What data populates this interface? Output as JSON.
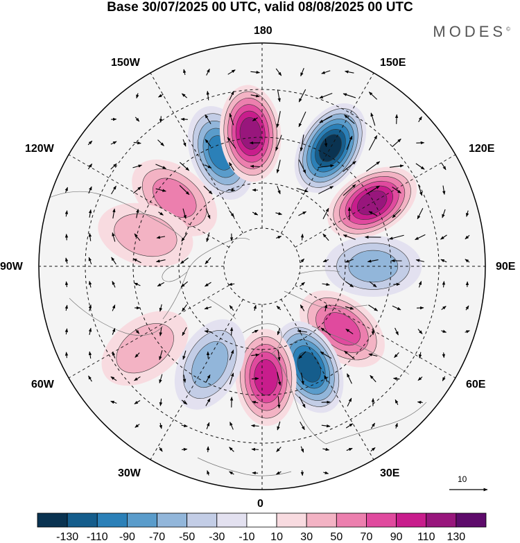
{
  "title": "Base 30/07/2025 00 UTC, valid 08/08/2025 00 UTC",
  "brand": "MODES",
  "brand_mark": "©",
  "longitude_labels": {
    "lon_180": "180",
    "lon_150e": "150E",
    "lon_120e": "120E",
    "lon_90e": "90E",
    "lon_60e": "60E",
    "lon_30e": "30E",
    "lon_0": "0",
    "lon_30w": "30W",
    "lon_60w": "60W",
    "lon_90w": "90W",
    "lon_120w": "120W",
    "lon_150w": "150W"
  },
  "reference_vector_label": "10",
  "colorbar": {
    "tick_labels": [
      "-130",
      "-110",
      "-90",
      "-70",
      "-50",
      "-30",
      "-10",
      "10",
      "30",
      "50",
      "70",
      "90",
      "110",
      "130"
    ],
    "colors": [
      "#0a3351",
      "#155d8c",
      "#2b80b8",
      "#5a9ccb",
      "#92b6da",
      "#c3cde6",
      "#e3e1f0",
      "#ffffff",
      "#f8dbe0",
      "#f3b3c4",
      "#ec7fae",
      "#e04a9e",
      "#c81d8c",
      "#98167c",
      "#5e0b6b"
    ]
  },
  "colors": {
    "negative_strong": "#0a3351",
    "negative_mid": "#2b80b8",
    "negative_weak": "#c3cde6",
    "positive_weak": "#f8dbe0",
    "positive_mid": "#ec7fae",
    "positive_strong": "#98167c",
    "neutral": "#ffffff"
  },
  "chart_data": {
    "type": "heatmap",
    "title": "Base 30/07/2025 00 UTC, valid 08/08/2025 00 UTC",
    "projection": "north polar stereographic",
    "field_range": [
      -130,
      130
    ],
    "contour_interval": 20,
    "anomaly_centers": [
      {
        "lon": -160,
        "lat": 52,
        "value": -90
      },
      {
        "lon": -128,
        "lat": 55,
        "value": 50
      },
      {
        "lon": -175,
        "lat": 48,
        "value": 110
      },
      {
        "lon": 150,
        "lat": 47,
        "value": -130
      },
      {
        "lon": 120,
        "lat": 50,
        "value": 110
      },
      {
        "lon": 90,
        "lat": 55,
        "value": -50
      },
      {
        "lon": 52,
        "lat": 58,
        "value": 70
      },
      {
        "lon": 25,
        "lat": 55,
        "value": -110
      },
      {
        "lon": 2,
        "lat": 55,
        "value": 90
      },
      {
        "lon": -28,
        "lat": 55,
        "value": -50
      },
      {
        "lon": -55,
        "lat": 45,
        "value": 30
      },
      {
        "lon": -105,
        "lat": 52,
        "value": 30
      }
    ]
  }
}
